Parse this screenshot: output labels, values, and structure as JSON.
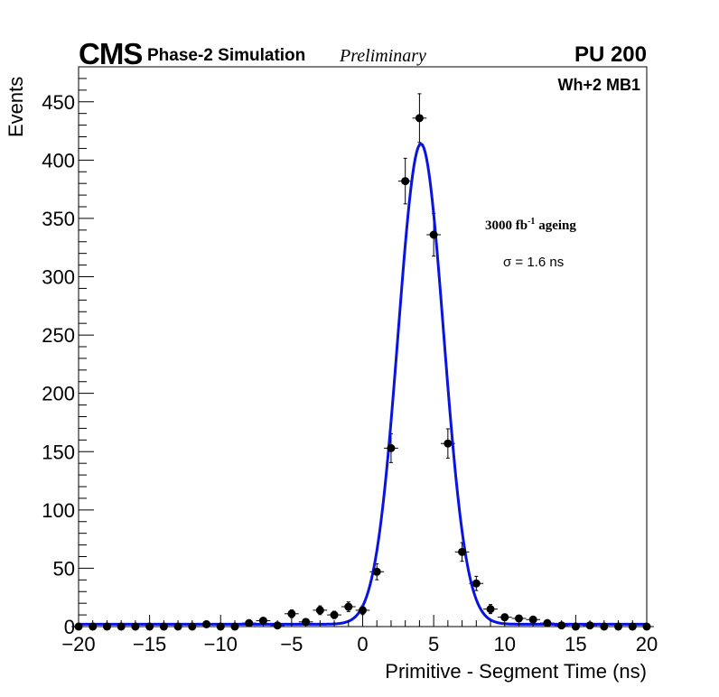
{
  "header": {
    "experiment": "CMS",
    "simulation": "Phase-2 Simulation",
    "status": "Preliminary",
    "pileup": "PU 200"
  },
  "annotations": {
    "region": "Wh+2 MB1",
    "lumi_main": "3000 fb",
    "lumi_exp": "-1",
    "lumi_suffix": " ageing",
    "resolution": "σ = 1.6 ns"
  },
  "chart_data": {
    "type": "scatter",
    "xlabel": "Primitive - Segment Time (ns)",
    "ylabel": "Events",
    "xlim": [
      -20,
      20
    ],
    "ylim": [
      0,
      480
    ],
    "xticks": [
      -20,
      -15,
      -10,
      -5,
      0,
      5,
      10,
      15,
      20
    ],
    "xtick_labels": [
      "−20",
      "−15",
      "−10",
      "−5",
      "0",
      "5",
      "10",
      "15",
      "20"
    ],
    "yticks": [
      0,
      50,
      100,
      150,
      200,
      250,
      300,
      350,
      400,
      450
    ],
    "grid": false,
    "series": [
      {
        "kind": "points_with_errors",
        "color": "#000000",
        "x": [
          -20,
          -19,
          -18,
          -17,
          -16,
          -15,
          -14,
          -13,
          -12,
          -11,
          -10,
          -9,
          -8,
          -7,
          -6,
          -5,
          -4,
          -3,
          -2,
          -1,
          0,
          1,
          2,
          3,
          4,
          5,
          6,
          7,
          8,
          9,
          10,
          11,
          12,
          13,
          14,
          15,
          16,
          17,
          18,
          19,
          20
        ],
        "y": [
          0,
          0,
          0,
          0,
          0,
          0,
          0,
          0,
          0,
          2,
          0,
          0,
          3,
          5,
          1,
          11,
          4,
          14,
          10,
          17,
          14,
          47,
          153,
          382,
          436,
          336,
          157,
          64,
          37,
          15,
          8,
          7,
          6,
          3,
          1,
          0,
          1,
          0,
          0,
          0,
          0
        ]
      },
      {
        "kind": "fit_curve",
        "color": "#0a14e0",
        "model": "gaussian",
        "amplitude": 412,
        "mean": 4.1,
        "sigma": 1.6,
        "baseline": 2
      }
    ]
  }
}
